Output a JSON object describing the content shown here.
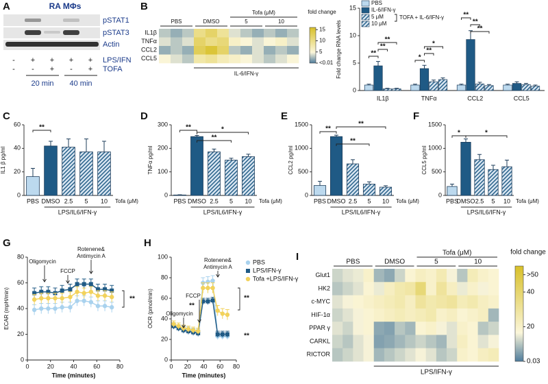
{
  "blot": {
    "panel_label": "A",
    "title": "RA MΦs",
    "rows": [
      "pSTAT1",
      "pSTAT3",
      "Actin"
    ],
    "treatments": [
      {
        "name": "LPS/IFN",
        "marks": [
          "-",
          "+",
          "+",
          "+",
          "+"
        ]
      },
      {
        "name": "TOFA",
        "marks": [
          "-",
          "-",
          "+",
          "-",
          "+"
        ]
      }
    ],
    "times": [
      "20 min",
      "40 min"
    ]
  },
  "chart_data": [
    {
      "type": "heatmap",
      "panel_label": "B",
      "rows": [
        "IL1β",
        "TNFα",
        "CCL2",
        "CCL5"
      ],
      "groups": [
        "PBS",
        "DMSO"
      ],
      "tofa_label": "Tofa (μM)",
      "doses": [
        "5",
        "10"
      ],
      "treatment_label": "IL-6/IFN-γ",
      "values": [
        [
          3,
          2,
          3,
          10,
          12,
          9,
          4,
          3,
          2,
          3,
          2,
          3
        ],
        [
          4,
          3,
          4,
          12,
          10,
          11,
          6,
          5,
          4,
          5,
          6,
          4
        ],
        [
          2,
          3,
          2,
          13,
          15,
          12,
          3,
          2,
          4,
          2,
          3,
          2
        ],
        [
          5,
          4,
          3,
          8,
          9,
          7,
          6,
          5,
          4,
          3,
          4,
          5
        ]
      ],
      "clim": [
        0.01,
        16
      ],
      "cticks": [
        15,
        10,
        5,
        {
          "value": 0.01,
          "label": "<0.01"
        }
      ],
      "colorbar_title": "fold change",
      "colors": [
        "#4f7c9c",
        "#fbf6da",
        "#d8c029"
      ]
    },
    {
      "type": "grouped_bar",
      "categories": [
        "IL1β",
        "TNFα",
        "CCL2",
        "CCL5"
      ],
      "series": [
        {
          "name": "PBS",
          "color": "#bcd9ee",
          "hatch": false,
          "values": [
            1,
            1,
            1,
            1
          ],
          "errors": [
            0.15,
            0.15,
            0.15,
            0.15
          ]
        },
        {
          "name": "IL-6/IFN-γ",
          "color": "#1f5a85",
          "hatch": false,
          "values": [
            4.5,
            4,
            9.3,
            1.3
          ],
          "errors": [
            0.8,
            0.6,
            1.6,
            0.3
          ]
        },
        {
          "name": "5 μM",
          "color": "#1f5a85",
          "hatch": true,
          "values": [
            0.3,
            1.6,
            1.2,
            1.1
          ],
          "errors": [
            0.1,
            0.3,
            0.3,
            0.2
          ]
        },
        {
          "name": "10 μM",
          "color": "#1f5a85",
          "hatch": true,
          "values": [
            0.3,
            2,
            0.9,
            0.8
          ],
          "errors": [
            0.1,
            0.3,
            0.2,
            0.2
          ]
        }
      ],
      "legend_note": "TOFA + IL-6/IFN-γ",
      "ylabel": "Fold change RNA levels",
      "ylim": [
        0,
        15
      ],
      "yticks": [
        0,
        5,
        10,
        15
      ],
      "annotations": [
        "**",
        "**",
        "**",
        "*",
        "**",
        "*",
        "**",
        "**",
        "**"
      ]
    },
    {
      "type": "bar",
      "panel_label": "C",
      "categories": [
        "PBS",
        "DMSO",
        "2.5",
        "5",
        "10"
      ],
      "values": [
        16,
        42,
        41,
        37,
        37
      ],
      "errors": [
        7,
        4,
        7,
        11,
        9
      ],
      "colors": [
        "#bcd9ee",
        "#1f5a85",
        "#1f5a85",
        "#1f5a85",
        "#1f5a85"
      ],
      "hatched": [
        false,
        false,
        true,
        true,
        true
      ],
      "ylabel": "IL1 β pg/ml",
      "xlabel": "LPS/IL6/IFN-γ",
      "x_note": "Tofa (μM)",
      "ylim": [
        0,
        60
      ],
      "yticks": [
        0,
        20,
        40,
        60
      ],
      "annotations": [
        "**"
      ]
    },
    {
      "type": "bar",
      "panel_label": "D",
      "categories": [
        "PBS",
        "DMSO",
        "2.5",
        "5",
        "10"
      ],
      "values": [
        2,
        250,
        185,
        150,
        165
      ],
      "errors": [
        1,
        5,
        12,
        8,
        10
      ],
      "colors": [
        "#bcd9ee",
        "#1f5a85",
        "#1f5a85",
        "#1f5a85",
        "#1f5a85"
      ],
      "hatched": [
        false,
        false,
        true,
        true,
        true
      ],
      "ylabel": "TNFα pg/ml",
      "xlabel": "LPS/IL6/IFN-γ",
      "x_note": "Tofa (μM)",
      "ylim": [
        0,
        300
      ],
      "yticks": [
        0,
        100,
        200,
        300
      ],
      "annotations": [
        "**",
        "**",
        "*"
      ]
    },
    {
      "type": "bar",
      "panel_label": "E",
      "categories": [
        "PBS",
        "DMSO",
        "2.5",
        "5",
        "10"
      ],
      "values": [
        210,
        1250,
        670,
        240,
        175
      ],
      "errors": [
        90,
        30,
        90,
        50,
        30
      ],
      "colors": [
        "#bcd9ee",
        "#1f5a85",
        "#1f5a85",
        "#1f5a85",
        "#1f5a85"
      ],
      "hatched": [
        false,
        false,
        true,
        true,
        true
      ],
      "ylabel": "CCL2 pg/ml",
      "xlabel": "LPS/IL6/IFN-γ",
      "x_note": "Tofa (μM)",
      "ylim": [
        0,
        1500
      ],
      "yticks": [
        0,
        500,
        1000,
        1500
      ],
      "annotations": [
        "**",
        "**",
        "**"
      ]
    },
    {
      "type": "bar",
      "panel_label": "F",
      "categories": [
        "PBS",
        "DMSO",
        "2.5",
        "5",
        "10"
      ],
      "values": [
        190,
        1130,
        760,
        550,
        610
      ],
      "errors": [
        50,
        70,
        110,
        90,
        140
      ],
      "colors": [
        "#bcd9ee",
        "#1f5a85",
        "#1f5a85",
        "#1f5a85",
        "#1f5a85"
      ],
      "hatched": [
        false,
        false,
        true,
        true,
        true
      ],
      "ylabel": "CCL5 pg/ml",
      "xlabel": "LPS/IL6/IFN-γ",
      "x_note": "Tofa (μM)",
      "ylim": [
        0,
        1500
      ],
      "yticks": [
        0,
        500,
        1000,
        1500
      ],
      "annotations": [
        "*",
        "*"
      ]
    },
    {
      "type": "line",
      "panel_label": "G",
      "x": [
        6,
        12,
        18,
        24,
        30,
        37,
        43,
        49,
        55,
        61,
        67,
        73
      ],
      "series": [
        {
          "name": "PBS",
          "color": "#a9d2ee",
          "marker": "circle",
          "values": [
            39,
            40,
            40,
            40,
            41,
            41,
            46,
            46,
            45,
            42,
            42,
            41
          ],
          "errors": [
            4,
            4,
            4,
            4,
            4,
            4,
            4,
            4,
            4,
            4,
            4,
            4
          ]
        },
        {
          "name": "LPS/IFN-γ",
          "color": "#1f5a85",
          "marker": "square",
          "values": [
            52,
            53,
            53,
            52,
            54,
            55,
            59,
            59,
            59,
            55,
            55,
            54
          ],
          "errors": [
            4,
            4,
            4,
            4,
            4,
            4,
            4,
            4,
            4,
            4,
            4,
            4
          ]
        },
        {
          "name": "Tofa +LPS/IFN-γ",
          "color": "#f2d25c",
          "marker": "circle",
          "values": [
            47,
            48,
            48,
            48,
            48,
            49,
            53,
            52,
            53,
            50,
            50,
            49
          ],
          "errors": [
            4,
            4,
            4,
            4,
            4,
            4,
            4,
            4,
            4,
            4,
            4,
            4
          ]
        }
      ],
      "xlabel": "Time (minutes)",
      "ylabel": "ECAR (mpH/min)",
      "xlim": [
        0,
        80
      ],
      "xticks": [
        0,
        20,
        40,
        60,
        80
      ],
      "ylim": [
        0,
        80
      ],
      "yticks": [
        0,
        20,
        40,
        60,
        80
      ],
      "legend": false,
      "annotations": [
        "Oligomycin",
        "FCCP",
        "Rotenene&",
        "Antimycin A",
        "**"
      ]
    },
    {
      "type": "line",
      "panel_label": "H",
      "x": [
        3,
        9,
        15,
        21,
        27,
        33,
        39,
        45,
        51,
        57,
        63,
        69
      ],
      "series": [
        {
          "name": "PBS",
          "color": "#a9d2ee",
          "marker": "circle",
          "values": [
            33,
            31,
            30,
            29,
            28,
            27,
            75,
            76,
            77,
            23,
            23,
            23
          ],
          "errors": [
            3,
            3,
            3,
            3,
            3,
            3,
            5,
            5,
            5,
            3,
            3,
            3
          ]
        },
        {
          "name": "LPS/IFN-γ",
          "color": "#1f5a85",
          "marker": "square",
          "values": [
            33,
            31,
            29,
            28,
            27,
            26,
            57,
            57,
            58,
            25,
            25,
            25
          ],
          "errors": [
            3,
            3,
            3,
            3,
            3,
            3,
            3,
            3,
            3,
            3,
            3,
            3
          ]
        },
        {
          "name": "Tofa +LPS/IFN-γ",
          "color": "#f2d25c",
          "marker": "circle",
          "values": [
            35,
            33,
            31,
            30,
            29,
            28,
            70,
            70,
            70,
            48,
            45,
            44
          ],
          "errors": [
            3,
            3,
            3,
            3,
            3,
            3,
            5,
            5,
            5,
            5,
            5,
            5
          ]
        }
      ],
      "xlabel": "Time (minutes)",
      "ylabel": "OCR (pmol/min)",
      "xlim": [
        0,
        80
      ],
      "xticks": [
        0,
        20,
        40,
        60,
        80
      ],
      "ylim": [
        0,
        100
      ],
      "yticks": [
        0,
        20,
        40,
        60,
        80,
        100
      ],
      "legend": true,
      "annotations": [
        "FCCP",
        "Oligomycin",
        "Rotenene&",
        "Antimycin A",
        "**",
        "**",
        "**"
      ]
    },
    {
      "type": "heatmap",
      "panel_label": "I",
      "rows": [
        "Glut1",
        "HK2",
        "c-MYC",
        "HIF-1α",
        "PPAR γ",
        "CARKL",
        "RICTOR"
      ],
      "groups": [
        "PBS",
        "DMSO"
      ],
      "tofa_label": "Tofa (μM)",
      "doses": [
        "5",
        "10"
      ],
      "treatment_label": "LPS/IFN-γ",
      "values": [
        [
          12,
          14,
          15,
          20,
          8,
          6,
          12,
          18,
          22,
          20,
          25,
          16,
          10,
          24,
          20,
          18
        ],
        [
          10,
          12,
          14,
          18,
          15,
          22,
          26,
          28,
          38,
          20,
          30,
          22,
          15,
          20,
          16,
          18
        ],
        [
          14,
          16,
          18,
          20,
          22,
          24,
          26,
          22,
          30,
          26,
          28,
          30,
          24,
          26,
          22,
          20
        ],
        [
          12,
          14,
          16,
          18,
          20,
          22,
          24,
          22,
          24,
          26,
          20,
          22,
          18,
          20,
          22,
          8
        ],
        [
          14,
          12,
          16,
          18,
          6,
          5,
          10,
          8,
          18,
          20,
          16,
          14,
          20,
          18,
          10,
          12
        ],
        [
          12,
          10,
          14,
          16,
          5,
          6,
          8,
          10,
          12,
          10,
          8,
          14,
          22,
          18,
          14,
          16
        ],
        [
          10,
          12,
          14,
          16,
          8,
          10,
          12,
          14,
          16,
          14,
          10,
          12,
          20,
          18,
          22,
          24
        ]
      ],
      "clim": [
        0.03,
        55
      ],
      "cticks": [
        {
          "value": 50,
          "label": ">50"
        },
        40,
        20,
        0.03
      ],
      "colorbar_title": "fold change",
      "colors": [
        "#4f7c9c",
        "#fbf6da",
        "#d8c029"
      ]
    }
  ]
}
